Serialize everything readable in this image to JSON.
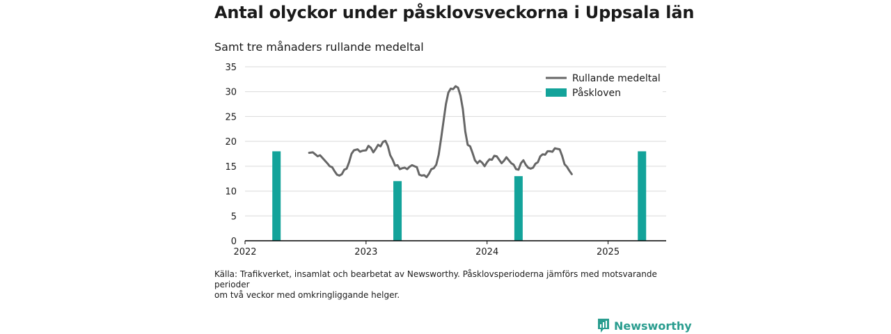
{
  "title": "Antal olyckor under påsklovsveckorna i Uppsala län",
  "subtitle": "Samt tre månaders rullande medeltal",
  "source_line1": "Källa: Trafikverket, insamlat och bearbetat av Newsworthy. Påsklovsperioderna jämförs med motsvarande perioder",
  "source_line2": "om två veckor med omkringliggande helger.",
  "brand": {
    "name": "Newsworthy",
    "icon": "newsworthy-logo-icon",
    "color": "#2a9d8f"
  },
  "colors": {
    "line": "#666666",
    "bar": "#13a39a",
    "grid": "#d9d9d9",
    "axis": "#000000"
  },
  "chart_data": {
    "type": "bar+line",
    "x_unit": "year",
    "xlim": [
      2022.0,
      2025.48
    ],
    "ylim": [
      0,
      35
    ],
    "yticks": [
      0,
      5,
      10,
      15,
      20,
      25,
      30,
      35
    ],
    "xticks": [
      2022,
      2023,
      2024,
      2025
    ],
    "grid": "horizontal",
    "legend_position": "top-right",
    "series": [
      {
        "name": "Rullande medeltal",
        "type": "line",
        "points": [
          [
            2022.53,
            17.7
          ],
          [
            2022.56,
            17.8
          ],
          [
            2022.58,
            17.4
          ],
          [
            2022.6,
            17.0
          ],
          [
            2022.62,
            17.2
          ],
          [
            2022.65,
            16.4
          ],
          [
            2022.68,
            15.6
          ],
          [
            2022.7,
            15.0
          ],
          [
            2022.72,
            14.8
          ],
          [
            2022.74,
            14.0
          ],
          [
            2022.76,
            13.3
          ],
          [
            2022.78,
            13.1
          ],
          [
            2022.8,
            13.4
          ],
          [
            2022.82,
            14.3
          ],
          [
            2022.84,
            14.5
          ],
          [
            2022.86,
            15.8
          ],
          [
            2022.88,
            17.5
          ],
          [
            2022.9,
            18.2
          ],
          [
            2022.93,
            18.4
          ],
          [
            2022.95,
            17.9
          ],
          [
            2022.97,
            18.1
          ],
          [
            2023.0,
            18.2
          ],
          [
            2023.02,
            19.1
          ],
          [
            2023.04,
            18.7
          ],
          [
            2023.06,
            17.8
          ],
          [
            2023.08,
            18.5
          ],
          [
            2023.1,
            19.3
          ],
          [
            2023.12,
            19.0
          ],
          [
            2023.14,
            19.9
          ],
          [
            2023.16,
            20.1
          ],
          [
            2023.18,
            19.1
          ],
          [
            2023.2,
            17.2
          ],
          [
            2023.22,
            16.3
          ],
          [
            2023.24,
            15.1
          ],
          [
            2023.26,
            15.2
          ],
          [
            2023.28,
            14.4
          ],
          [
            2023.3,
            14.6
          ],
          [
            2023.32,
            14.7
          ],
          [
            2023.34,
            14.4
          ],
          [
            2023.36,
            14.9
          ],
          [
            2023.38,
            15.2
          ],
          [
            2023.4,
            15.0
          ],
          [
            2023.42,
            14.8
          ],
          [
            2023.44,
            13.3
          ],
          [
            2023.46,
            13.1
          ],
          [
            2023.48,
            13.2
          ],
          [
            2023.5,
            12.8
          ],
          [
            2023.52,
            13.5
          ],
          [
            2023.54,
            14.4
          ],
          [
            2023.56,
            14.6
          ],
          [
            2023.58,
            15.3
          ],
          [
            2023.6,
            17.3
          ],
          [
            2023.62,
            20.5
          ],
          [
            2023.64,
            24.0
          ],
          [
            2023.66,
            27.5
          ],
          [
            2023.68,
            29.8
          ],
          [
            2023.7,
            30.6
          ],
          [
            2023.72,
            30.5
          ],
          [
            2023.74,
            31.1
          ],
          [
            2023.76,
            30.8
          ],
          [
            2023.78,
            29.2
          ],
          [
            2023.8,
            26.5
          ],
          [
            2023.82,
            22.0
          ],
          [
            2023.84,
            19.3
          ],
          [
            2023.86,
            19.0
          ],
          [
            2023.88,
            17.7
          ],
          [
            2023.9,
            16.2
          ],
          [
            2023.92,
            15.6
          ],
          [
            2023.94,
            16.1
          ],
          [
            2023.96,
            15.7
          ],
          [
            2023.98,
            15.0
          ],
          [
            2024.0,
            15.8
          ],
          [
            2024.02,
            16.4
          ],
          [
            2024.04,
            16.3
          ],
          [
            2024.06,
            17.1
          ],
          [
            2024.08,
            17.0
          ],
          [
            2024.1,
            16.3
          ],
          [
            2024.12,
            15.6
          ],
          [
            2024.14,
            16.1
          ],
          [
            2024.16,
            16.8
          ],
          [
            2024.18,
            16.2
          ],
          [
            2024.2,
            15.6
          ],
          [
            2024.22,
            15.3
          ],
          [
            2024.24,
            14.4
          ],
          [
            2024.26,
            14.3
          ],
          [
            2024.28,
            15.6
          ],
          [
            2024.3,
            16.2
          ],
          [
            2024.32,
            15.3
          ],
          [
            2024.34,
            14.7
          ],
          [
            2024.36,
            14.5
          ],
          [
            2024.38,
            14.7
          ],
          [
            2024.4,
            15.5
          ],
          [
            2024.42,
            15.8
          ],
          [
            2024.44,
            17.0
          ],
          [
            2024.46,
            17.4
          ],
          [
            2024.48,
            17.3
          ],
          [
            2024.5,
            18.0
          ],
          [
            2024.52,
            18.0
          ],
          [
            2024.54,
            17.9
          ],
          [
            2024.56,
            18.6
          ],
          [
            2024.58,
            18.5
          ],
          [
            2024.6,
            18.4
          ],
          [
            2024.62,
            17.1
          ],
          [
            2024.64,
            15.4
          ],
          [
            2024.66,
            14.9
          ],
          [
            2024.68,
            14.1
          ],
          [
            2024.7,
            13.4
          ]
        ]
      },
      {
        "name": "Påskloven",
        "type": "bar",
        "points": [
          [
            2022.26,
            18
          ],
          [
            2023.26,
            12
          ],
          [
            2024.26,
            13
          ],
          [
            2025.28,
            18
          ]
        ]
      }
    ]
  }
}
